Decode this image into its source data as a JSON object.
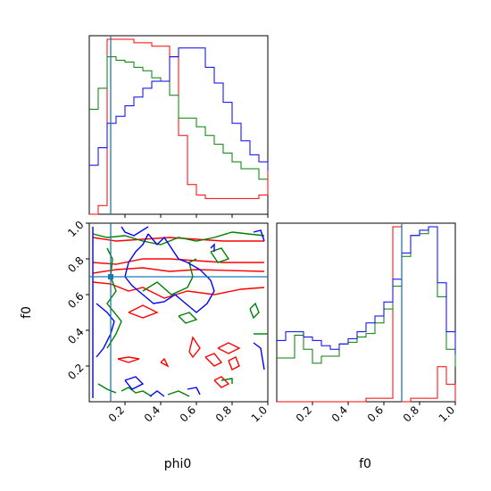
{
  "chart_data": {
    "type": "corner",
    "axis_labels": {
      "phi0": "phi0",
      "f0": "f0"
    },
    "ticks": {
      "phi0": [
        "0.2",
        "0.4",
        "0.6",
        "0.8",
        "1.0"
      ],
      "f0_x": [
        "0.2",
        "0.4",
        "0.6",
        "0.8",
        "1.0"
      ],
      "f0_y": [
        "0.2",
        "0.4",
        "0.6",
        "0.8",
        "1.0"
      ]
    },
    "axis_ranges": {
      "phi0": [
        0,
        1
      ],
      "f0": [
        0,
        1
      ]
    },
    "truth": {
      "phi0": 0.12,
      "f0": 0.7
    },
    "series": [
      {
        "color": "#ff0000",
        "phi0_hist": {
          "edges": [
            0,
            0.05,
            0.1,
            0.15,
            0.2,
            0.25,
            0.3,
            0.35,
            0.4,
            0.45,
            0.5,
            0.55,
            0.6,
            0.65,
            0.7,
            0.75,
            0.8,
            0.85,
            0.9,
            0.95,
            1.0
          ],
          "heights": [
            0,
            0.05,
            1.0,
            1.0,
            1.0,
            0.98,
            0.98,
            0.96,
            0.96,
            0.9,
            0.45,
            0.17,
            0.11,
            0.09,
            0.09,
            0.09,
            0.09,
            0.09,
            0.09,
            0.11,
            0.25
          ]
        },
        "f0_hist": {
          "edges": [
            0,
            0.05,
            0.1,
            0.15,
            0.2,
            0.25,
            0.3,
            0.35,
            0.4,
            0.45,
            0.5,
            0.55,
            0.6,
            0.65,
            0.7,
            0.75,
            0.8,
            0.85,
            0.9,
            0.95,
            1.0
          ],
          "heights": [
            0,
            0,
            0,
            0,
            0,
            0,
            0,
            0,
            0,
            0,
            0.02,
            0.02,
            0.02,
            1.0,
            0,
            0.02,
            0.02,
            0.02,
            0.2,
            0.1,
            0
          ]
        }
      },
      {
        "color": "#008000",
        "phi0_hist": {
          "edges": [
            0,
            0.05,
            0.1,
            0.15,
            0.2,
            0.25,
            0.3,
            0.35,
            0.4,
            0.45,
            0.5,
            0.55,
            0.6,
            0.65,
            0.7,
            0.75,
            0.8,
            0.85,
            0.9,
            0.95,
            1.0
          ],
          "heights": [
            0.6,
            0.72,
            0.9,
            0.88,
            0.87,
            0.84,
            0.82,
            0.78,
            0.76,
            0.68,
            0.55,
            0.55,
            0.5,
            0.45,
            0.4,
            0.35,
            0.3,
            0.26,
            0.26,
            0.2,
            0.2
          ]
        },
        "f0_hist": {
          "edges": [
            0,
            0.05,
            0.1,
            0.15,
            0.2,
            0.25,
            0.3,
            0.35,
            0.4,
            0.45,
            0.5,
            0.55,
            0.6,
            0.65,
            0.7,
            0.75,
            0.8,
            0.85,
            0.9,
            0.95,
            1.0
          ],
          "heights": [
            0.25,
            0.25,
            0.38,
            0.3,
            0.22,
            0.26,
            0.26,
            0.33,
            0.34,
            0.37,
            0.39,
            0.45,
            0.53,
            0.66,
            0.83,
            0.95,
            0.96,
            1.0,
            0.6,
            0.3,
            0.2
          ]
        }
      },
      {
        "color": "#0000ff",
        "phi0_hist": {
          "edges": [
            0,
            0.05,
            0.1,
            0.15,
            0.2,
            0.25,
            0.3,
            0.35,
            0.4,
            0.45,
            0.5,
            0.55,
            0.6,
            0.65,
            0.7,
            0.75,
            0.8,
            0.85,
            0.9,
            0.95,
            1.0
          ],
          "heights": [
            0.28,
            0.38,
            0.52,
            0.56,
            0.62,
            0.67,
            0.72,
            0.76,
            0.76,
            0.9,
            0.95,
            0.95,
            0.95,
            0.84,
            0.75,
            0.64,
            0.52,
            0.42,
            0.34,
            0.3,
            0.25
          ]
        },
        "f0_hist": {
          "edges": [
            0,
            0.05,
            0.1,
            0.15,
            0.2,
            0.25,
            0.3,
            0.35,
            0.4,
            0.45,
            0.5,
            0.55,
            0.6,
            0.65,
            0.7,
            0.75,
            0.8,
            0.85,
            0.9,
            0.95,
            1.0
          ],
          "heights": [
            0.35,
            0.4,
            0.4,
            0.37,
            0.35,
            0.32,
            0.3,
            0.33,
            0.36,
            0.4,
            0.45,
            0.49,
            0.57,
            0.7,
            0.85,
            0.95,
            0.98,
            1.0,
            0.68,
            0.4,
            0.27
          ]
        }
      }
    ],
    "contours": [
      {
        "color": "#ff0000",
        "lines": [
          [
            [
              0.02,
              0.92
            ],
            [
              0.15,
              0.9
            ],
            [
              0.3,
              0.91
            ],
            [
              0.45,
              0.92
            ],
            [
              0.6,
              0.91
            ],
            [
              0.75,
              0.9
            ],
            [
              0.98,
              0.9
            ]
          ],
          [
            [
              0.02,
              0.78
            ],
            [
              0.15,
              0.77
            ],
            [
              0.3,
              0.8
            ],
            [
              0.45,
              0.8
            ],
            [
              0.6,
              0.79
            ],
            [
              0.75,
              0.78
            ],
            [
              0.98,
              0.78
            ]
          ],
          [
            [
              0.02,
              0.72
            ],
            [
              0.15,
              0.74
            ],
            [
              0.3,
              0.75
            ],
            [
              0.45,
              0.73
            ],
            [
              0.6,
              0.74
            ],
            [
              0.98,
              0.73
            ]
          ],
          [
            [
              0.02,
              0.67
            ],
            [
              0.12,
              0.66
            ],
            [
              0.22,
              0.62
            ],
            [
              0.3,
              0.64
            ],
            [
              0.42,
              0.58
            ],
            [
              0.55,
              0.62
            ],
            [
              0.7,
              0.6
            ],
            [
              0.85,
              0.63
            ],
            [
              0.98,
              0.64
            ]
          ],
          [
            [
              0.22,
              0.5
            ],
            [
              0.3,
              0.54
            ],
            [
              0.38,
              0.5
            ],
            [
              0.3,
              0.47
            ],
            [
              0.22,
              0.5
            ]
          ],
          [
            [
              0.16,
              0.24
            ],
            [
              0.22,
              0.22
            ],
            [
              0.28,
              0.24
            ],
            [
              0.22,
              0.25
            ],
            [
              0.16,
              0.24
            ]
          ],
          [
            [
              0.4,
              0.22
            ],
            [
              0.44,
              0.2
            ],
            [
              0.42,
              0.24
            ],
            [
              0.4,
              0.22
            ]
          ],
          [
            [
              0.56,
              0.28
            ],
            [
              0.58,
              0.36
            ],
            [
              0.62,
              0.3
            ],
            [
              0.58,
              0.25
            ],
            [
              0.56,
              0.28
            ]
          ],
          [
            [
              0.65,
              0.25
            ],
            [
              0.7,
              0.27
            ],
            [
              0.74,
              0.22
            ],
            [
              0.7,
              0.2
            ],
            [
              0.65,
              0.25
            ]
          ],
          [
            [
              0.72,
              0.3
            ],
            [
              0.78,
              0.33
            ],
            [
              0.84,
              0.3
            ],
            [
              0.78,
              0.27
            ],
            [
              0.72,
              0.3
            ]
          ],
          [
            [
              0.78,
              0.23
            ],
            [
              0.82,
              0.25
            ],
            [
              0.84,
              0.2
            ],
            [
              0.8,
              0.18
            ],
            [
              0.78,
              0.23
            ]
          ],
          [
            [
              0.7,
              0.12
            ],
            [
              0.74,
              0.14
            ],
            [
              0.78,
              0.1
            ],
            [
              0.74,
              0.08
            ],
            [
              0.7,
              0.12
            ]
          ]
        ]
      },
      {
        "color": "#008000",
        "lines": [
          [
            [
              0.02,
              0.94
            ],
            [
              0.1,
              0.92
            ],
            [
              0.2,
              0.93
            ],
            [
              0.3,
              0.9
            ],
            [
              0.4,
              0.88
            ],
            [
              0.5,
              0.92
            ],
            [
              0.6,
              0.9
            ],
            [
              0.7,
              0.92
            ],
            [
              0.8,
              0.95
            ],
            [
              0.98,
              0.93
            ]
          ],
          [
            [
              0.1,
              0.86
            ],
            [
              0.13,
              0.8
            ],
            [
              0.12,
              0.7
            ],
            [
              0.15,
              0.62
            ],
            [
              0.1,
              0.55
            ],
            [
              0.18,
              0.45
            ],
            [
              0.15,
              0.38
            ],
            [
              0.1,
              0.3
            ]
          ],
          [
            [
              0.3,
              0.62
            ],
            [
              0.38,
              0.67
            ],
            [
              0.46,
              0.6
            ],
            [
              0.55,
              0.64
            ],
            [
              0.58,
              0.7
            ],
            [
              0.56,
              0.78
            ],
            [
              0.6,
              0.8
            ]
          ],
          [
            [
              0.5,
              0.48
            ],
            [
              0.56,
              0.5
            ],
            [
              0.6,
              0.46
            ],
            [
              0.54,
              0.44
            ],
            [
              0.5,
              0.48
            ]
          ],
          [
            [
              0.68,
              0.84
            ],
            [
              0.74,
              0.86
            ],
            [
              0.78,
              0.8
            ],
            [
              0.72,
              0.78
            ],
            [
              0.68,
              0.84
            ]
          ],
          [
            [
              0.9,
              0.52
            ],
            [
              0.93,
              0.55
            ],
            [
              0.95,
              0.5
            ],
            [
              0.92,
              0.47
            ],
            [
              0.9,
              0.52
            ]
          ],
          [
            [
              0.92,
              0.38
            ],
            [
              1.0,
              0.38
            ]
          ],
          [
            [
              0.74,
              0.12
            ],
            [
              0.8,
              0.13
            ],
            [
              0.8,
              0.1
            ]
          ],
          [
            [
              0.05,
              0.1
            ],
            [
              0.1,
              0.07
            ],
            [
              0.15,
              0.05
            ]
          ],
          [
            [
              0.18,
              0.06
            ],
            [
              0.22,
              0.08
            ],
            [
              0.26,
              0.05
            ],
            [
              0.3,
              0.06
            ],
            [
              0.35,
              0.03
            ]
          ],
          [
            [
              0.44,
              0.04
            ],
            [
              0.5,
              0.06
            ],
            [
              0.56,
              0.03
            ]
          ]
        ]
      },
      {
        "color": "#0000ff",
        "lines": [
          [
            [
              0.02,
              0.98
            ],
            [
              0.02,
              0.02
            ]
          ],
          [
            [
              0.18,
              0.98
            ],
            [
              0.2,
              0.95
            ],
            [
              0.25,
              0.93
            ],
            [
              0.33,
              0.98
            ]
          ],
          [
            [
              0.33,
              0.94
            ],
            [
              0.38,
              0.88
            ],
            [
              0.42,
              0.92
            ],
            [
              0.46,
              0.86
            ],
            [
              0.5,
              0.8
            ],
            [
              0.55,
              0.78
            ],
            [
              0.62,
              0.74
            ],
            [
              0.68,
              0.68
            ],
            [
              0.7,
              0.62
            ],
            [
              0.66,
              0.55
            ],
            [
              0.6,
              0.5
            ],
            [
              0.54,
              0.55
            ],
            [
              0.48,
              0.6
            ],
            [
              0.42,
              0.56
            ],
            [
              0.36,
              0.55
            ],
            [
              0.3,
              0.6
            ],
            [
              0.24,
              0.65
            ],
            [
              0.2,
              0.7
            ],
            [
              0.22,
              0.78
            ],
            [
              0.26,
              0.84
            ],
            [
              0.3,
              0.88
            ],
            [
              0.33,
              0.94
            ]
          ],
          [
            [
              0.04,
              0.55
            ],
            [
              0.1,
              0.5
            ],
            [
              0.14,
              0.45
            ],
            [
              0.12,
              0.38
            ],
            [
              0.08,
              0.3
            ],
            [
              0.04,
              0.25
            ]
          ],
          [
            [
              0.2,
              0.12
            ],
            [
              0.26,
              0.14
            ],
            [
              0.3,
              0.1
            ],
            [
              0.24,
              0.07
            ],
            [
              0.2,
              0.12
            ]
          ],
          [
            [
              0.92,
              0.95
            ],
            [
              0.96,
              0.96
            ],
            [
              0.98,
              0.9
            ]
          ],
          [
            [
              0.68,
              0.86
            ],
            [
              0.7,
              0.88
            ],
            [
              0.7,
              0.84
            ]
          ],
          [
            [
              0.92,
              0.33
            ],
            [
              0.96,
              0.3
            ],
            [
              0.98,
              0.18
            ]
          ],
          [
            [
              0.34,
              0.03
            ],
            [
              0.38,
              0.06
            ],
            [
              0.42,
              0.03
            ]
          ],
          [
            [
              0.55,
              0.07
            ],
            [
              0.6,
              0.08
            ],
            [
              0.62,
              0.04
            ]
          ]
        ]
      }
    ]
  }
}
